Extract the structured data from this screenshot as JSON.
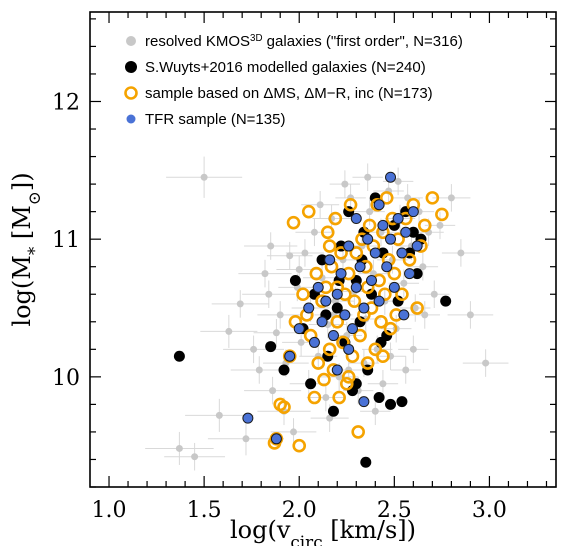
{
  "chart_data": {
    "type": "scatter",
    "xlabel": "log(v_circ [km/s])",
    "ylabel": "log(M_* [M_⊙])",
    "xlim": [
      0.9,
      3.35
    ],
    "ylim": [
      9.2,
      12.65
    ],
    "x_ticks": [
      "1.0",
      "1.5",
      "2.0",
      "2.5",
      "3.0"
    ],
    "y_ticks": [
      "10",
      "11",
      "12"
    ],
    "legend_position": "top-left",
    "colors": {
      "gray": "#c8c8c8",
      "black": "#000000",
      "orange": "#f5a300",
      "blue": "#4a72d6"
    },
    "legend": [
      {
        "prefix": "resolved KMOS",
        "sup": "3D",
        "suffix": " galaxies (\"first order\", N=316)",
        "marker": "gray"
      },
      {
        "prefix": "S.Wuyts+2016 modelled galaxies (N=240)",
        "sup": "",
        "suffix": "",
        "marker": "black"
      },
      {
        "prefix": "sample based on ΔMS, ΔM−R, inc (N=173)",
        "sup": "",
        "suffix": "",
        "marker": "orange-ring"
      },
      {
        "prefix": "TFR sample (N=135)",
        "sup": "",
        "suffix": "",
        "marker": "blue"
      }
    ],
    "series": [
      {
        "name": "resolved KMOS3D galaxies (\"first order\", N=316)",
        "points": [
          [
            1.37,
            9.48,
            0.18,
            0.12
          ],
          [
            1.45,
            9.42,
            0.16,
            0.1
          ],
          [
            1.5,
            11.45,
            0.2,
            0.15
          ],
          [
            1.58,
            9.72,
            0.18,
            0.12
          ],
          [
            1.63,
            10.33,
            0.15,
            0.12
          ],
          [
            1.69,
            10.53,
            0.15,
            0.1
          ],
          [
            1.72,
            9.55,
            0.2,
            0.12
          ],
          [
            1.76,
            10.2,
            0.16,
            0.1
          ],
          [
            1.79,
            10.05,
            0.15,
            0.1
          ],
          [
            1.82,
            10.75,
            0.14,
            0.1
          ],
          [
            1.84,
            10.6,
            0.14,
            0.1
          ],
          [
            1.86,
            9.9,
            0.15,
            0.1
          ],
          [
            1.88,
            10.32,
            0.12,
            0.1
          ],
          [
            1.9,
            10.45,
            0.12,
            0.1
          ],
          [
            1.93,
            10.1,
            0.12,
            0.1
          ],
          [
            1.95,
            10.88,
            0.12,
            0.1
          ],
          [
            1.97,
            9.6,
            0.12,
            0.1
          ],
          [
            1.99,
            10.65,
            0.1,
            0.1
          ],
          [
            2.01,
            10.25,
            0.1,
            0.1
          ],
          [
            2.03,
            10.9,
            0.1,
            0.1
          ],
          [
            2.05,
            9.95,
            0.1,
            0.1
          ],
          [
            2.06,
            10.5,
            0.1,
            0.1
          ],
          [
            2.08,
            11.05,
            0.1,
            0.1
          ],
          [
            2.1,
            10.15,
            0.1,
            0.1
          ],
          [
            2.12,
            10.72,
            0.1,
            0.1
          ],
          [
            2.14,
            9.85,
            0.1,
            0.1
          ],
          [
            2.15,
            10.38,
            0.1,
            0.1
          ],
          [
            2.17,
            11.15,
            0.1,
            0.1
          ],
          [
            2.19,
            10.55,
            0.1,
            0.1
          ],
          [
            2.21,
            10.0,
            0.1,
            0.1
          ],
          [
            2.23,
            10.85,
            0.08,
            0.1
          ],
          [
            2.25,
            10.3,
            0.08,
            0.1
          ],
          [
            2.27,
            11.3,
            0.08,
            0.1
          ],
          [
            2.29,
            10.62,
            0.08,
            0.1
          ],
          [
            2.31,
            9.9,
            0.08,
            0.1
          ],
          [
            2.33,
            10.95,
            0.08,
            0.1
          ],
          [
            2.35,
            10.42,
            0.08,
            0.1
          ],
          [
            2.37,
            11.2,
            0.08,
            0.1
          ],
          [
            2.39,
            10.75,
            0.08,
            0.1
          ],
          [
            2.41,
            10.2,
            0.08,
            0.1
          ],
          [
            2.43,
            11.05,
            0.08,
            0.1
          ],
          [
            2.45,
            10.55,
            0.08,
            0.1
          ],
          [
            2.47,
            11.35,
            0.08,
            0.1
          ],
          [
            2.49,
            10.85,
            0.08,
            0.1
          ],
          [
            2.51,
            10.35,
            0.08,
            0.1
          ],
          [
            2.53,
            11.15,
            0.08,
            0.1
          ],
          [
            2.55,
            10.68,
            0.08,
            0.1
          ],
          [
            2.57,
            11.3,
            0.08,
            0.1
          ],
          [
            2.59,
            10.95,
            0.08,
            0.1
          ],
          [
            2.61,
            10.5,
            0.08,
            0.1
          ],
          [
            2.63,
            11.2,
            0.08,
            0.1
          ],
          [
            2.65,
            10.8,
            0.08,
            0.1
          ],
          [
            2.68,
            11.05,
            0.08,
            0.1
          ],
          [
            2.71,
            10.6,
            0.08,
            0.1
          ],
          [
            2.74,
            11.1,
            0.08,
            0.1
          ],
          [
            2.8,
            11.3,
            0.1,
            0.1
          ],
          [
            2.85,
            10.9,
            0.1,
            0.1
          ],
          [
            2.9,
            10.45,
            0.12,
            0.1
          ],
          [
            2.98,
            10.1,
            0.12,
            0.1
          ],
          [
            1.92,
            9.75,
            0.14,
            0.1
          ],
          [
            2.0,
            10.78,
            0.12,
            0.1
          ],
          [
            2.16,
            9.7,
            0.1,
            0.1
          ],
          [
            2.24,
            11.4,
            0.08,
            0.1
          ],
          [
            2.36,
            11.45,
            0.08,
            0.1
          ],
          [
            2.44,
            9.95,
            0.08,
            0.1
          ],
          [
            2.52,
            11.42,
            0.08,
            0.1
          ],
          [
            2.6,
            10.2,
            0.08,
            0.1
          ],
          [
            2.66,
            10.45,
            0.08,
            0.1
          ],
          [
            2.26,
            10.05,
            0.08,
            0.1
          ],
          [
            2.18,
            10.45,
            0.1,
            0.1
          ],
          [
            2.34,
            10.1,
            0.08,
            0.1
          ],
          [
            2.48,
            10.15,
            0.08,
            0.1
          ],
          [
            1.85,
            10.95,
            0.14,
            0.1
          ],
          [
            2.11,
            11.25,
            0.1,
            0.1
          ],
          [
            2.4,
            9.75,
            0.08,
            0.1
          ],
          [
            2.56,
            10.05,
            0.08,
            0.1
          ]
        ]
      },
      {
        "name": "S.Wuyts+2016 modelled galaxies (N=240)",
        "points": [
          [
            1.37,
            10.15
          ],
          [
            1.85,
            10.22
          ],
          [
            1.92,
            10.05
          ],
          [
            1.98,
            10.7
          ],
          [
            2.02,
            10.35
          ],
          [
            2.06,
            9.95
          ],
          [
            2.08,
            10.6
          ],
          [
            2.12,
            10.85
          ],
          [
            2.15,
            10.15
          ],
          [
            2.18,
            9.75
          ],
          [
            2.2,
            10.5
          ],
          [
            2.22,
            10.95
          ],
          [
            2.24,
            10.25
          ],
          [
            2.26,
            11.2
          ],
          [
            2.28,
            9.9
          ],
          [
            2.3,
            10.7
          ],
          [
            2.32,
            10.4
          ],
          [
            2.34,
            11.05
          ],
          [
            2.35,
            9.38
          ],
          [
            2.36,
            10.05
          ],
          [
            2.38,
            10.6
          ],
          [
            2.4,
            11.3
          ],
          [
            2.42,
            9.85
          ],
          [
            2.44,
            10.9
          ],
          [
            2.46,
            10.3
          ],
          [
            2.48,
            9.8
          ],
          [
            2.5,
            11.1
          ],
          [
            2.52,
            10.55
          ],
          [
            2.54,
            9.82
          ],
          [
            2.56,
            11.2
          ],
          [
            2.58,
            10.9
          ],
          [
            2.6,
            11.05
          ],
          [
            2.62,
            10.75
          ],
          [
            2.64,
            11.0
          ],
          [
            2.77,
            10.55
          ],
          [
            2.3,
            9.95
          ],
          [
            2.21,
            10.7
          ],
          [
            2.14,
            10.45
          ],
          [
            2.43,
            10.25
          ],
          [
            2.33,
            10.85
          ]
        ]
      },
      {
        "name": "sample based on ΔMS, ΔM−R, inc (N=173)",
        "points": [
          [
            1.87,
            9.52
          ],
          [
            1.88,
            9.55
          ],
          [
            1.9,
            9.8
          ],
          [
            1.92,
            9.78
          ],
          [
            1.95,
            10.15
          ],
          [
            1.97,
            11.12
          ],
          [
            1.98,
            10.4
          ],
          [
            2.0,
            9.5
          ],
          [
            2.02,
            10.6
          ],
          [
            2.04,
            10.45
          ],
          [
            2.05,
            11.2
          ],
          [
            2.06,
            10.3
          ],
          [
            2.08,
            9.85
          ],
          [
            2.09,
            10.75
          ],
          [
            2.1,
            10.1
          ],
          [
            2.12,
            10.55
          ],
          [
            2.13,
            9.98
          ],
          [
            2.14,
            10.65
          ],
          [
            2.15,
            11.05
          ],
          [
            2.16,
            10.2
          ],
          [
            2.17,
            10.8
          ],
          [
            2.18,
            10.05
          ],
          [
            2.19,
            11.15
          ],
          [
            2.2,
            10.4
          ],
          [
            2.21,
            9.85
          ],
          [
            2.22,
            10.9
          ],
          [
            2.23,
            10.25
          ],
          [
            2.24,
            10.6
          ],
          [
            2.25,
            9.95
          ],
          [
            2.26,
            10.75
          ],
          [
            2.27,
            11.25
          ],
          [
            2.28,
            10.15
          ],
          [
            2.29,
            10.55
          ],
          [
            2.3,
            10.9
          ],
          [
            2.31,
            9.6
          ],
          [
            2.32,
            10.3
          ],
          [
            2.33,
            11.0
          ],
          [
            2.34,
            10.45
          ],
          [
            2.35,
            10.8
          ],
          [
            2.36,
            10.1
          ],
          [
            2.37,
            11.1
          ],
          [
            2.38,
            10.5
          ],
          [
            2.39,
            10.95
          ],
          [
            2.4,
            10.2
          ],
          [
            2.41,
            11.25
          ],
          [
            2.42,
            10.7
          ],
          [
            2.43,
            10.4
          ],
          [
            2.44,
            11.05
          ],
          [
            2.45,
            10.6
          ],
          [
            2.46,
            11.3
          ],
          [
            2.47,
            10.85
          ],
          [
            2.48,
            10.35
          ],
          [
            2.49,
            11.15
          ],
          [
            2.5,
            10.75
          ],
          [
            2.52,
            11.0
          ],
          [
            2.54,
            10.6
          ],
          [
            2.56,
            11.15
          ],
          [
            2.58,
            10.85
          ],
          [
            2.6,
            11.25
          ],
          [
            2.62,
            10.5
          ],
          [
            2.64,
            10.95
          ],
          [
            2.66,
            11.1
          ],
          [
            2.7,
            11.3
          ],
          [
            2.75,
            11.18
          ],
          [
            2.2,
            10.65
          ],
          [
            2.26,
            10.0
          ],
          [
            2.36,
            10.65
          ],
          [
            2.44,
            10.15
          ],
          [
            2.51,
            10.45
          ],
          [
            2.16,
            10.95
          ]
        ]
      },
      {
        "name": "TFR sample (N=135)",
        "points": [
          [
            1.73,
            9.7
          ],
          [
            1.88,
            9.55
          ],
          [
            1.95,
            10.15
          ],
          [
            2.0,
            10.35
          ],
          [
            2.05,
            10.5
          ],
          [
            2.08,
            10.25
          ],
          [
            2.1,
            10.65
          ],
          [
            2.12,
            10.4
          ],
          [
            2.14,
            10.55
          ],
          [
            2.16,
            10.85
          ],
          [
            2.18,
            10.3
          ],
          [
            2.2,
            10.6
          ],
          [
            2.22,
            10.75
          ],
          [
            2.24,
            10.45
          ],
          [
            2.26,
            10.95
          ],
          [
            2.28,
            10.35
          ],
          [
            2.3,
            10.65
          ],
          [
            2.32,
            10.8
          ],
          [
            2.34,
            10.5
          ],
          [
            2.36,
            11.0
          ],
          [
            2.38,
            10.7
          ],
          [
            2.4,
            10.9
          ],
          [
            2.42,
            10.55
          ],
          [
            2.44,
            11.1
          ],
          [
            2.46,
            10.8
          ],
          [
            2.48,
            11.0
          ],
          [
            2.5,
            10.65
          ],
          [
            2.52,
            11.15
          ],
          [
            2.54,
            10.9
          ],
          [
            2.56,
            11.05
          ],
          [
            2.58,
            10.75
          ],
          [
            2.6,
            11.2
          ],
          [
            2.62,
            10.95
          ],
          [
            2.34,
            9.82
          ],
          [
            2.48,
            11.45
          ],
          [
            2.42,
            11.25
          ],
          [
            2.3,
            11.15
          ],
          [
            2.2,
            10.05
          ],
          [
            2.26,
            10.2
          ],
          [
            2.55,
            10.45
          ]
        ]
      }
    ]
  }
}
